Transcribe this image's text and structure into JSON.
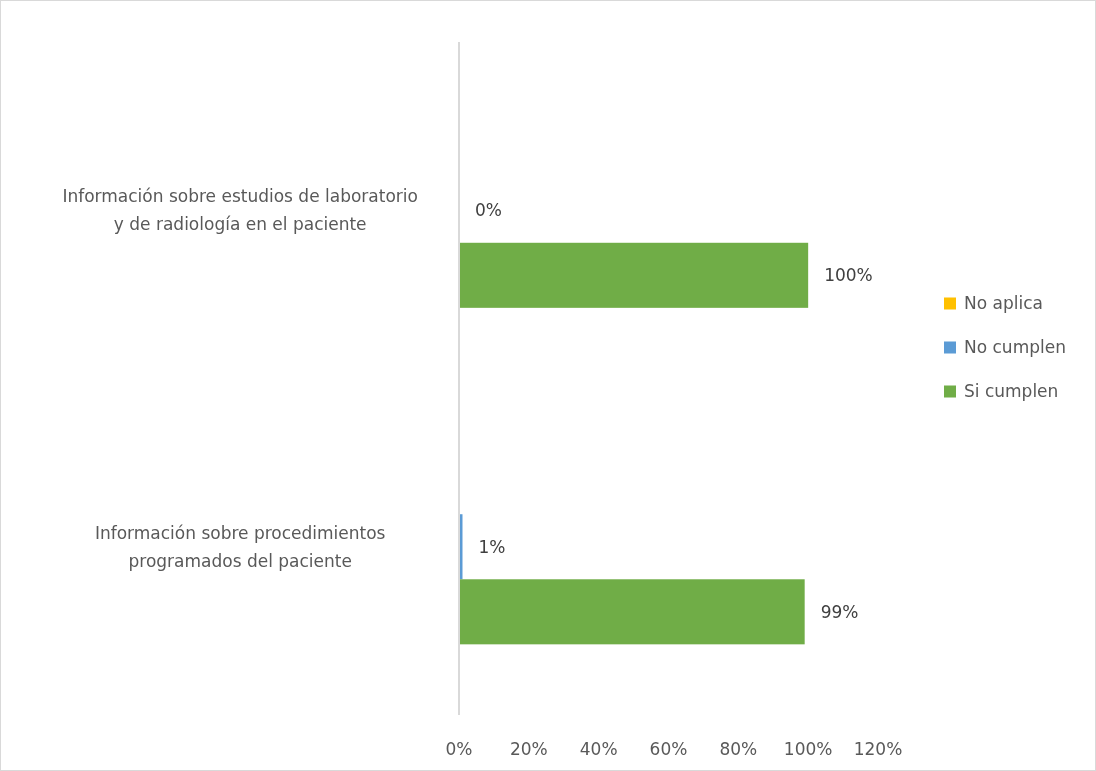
{
  "chart_data": {
    "type": "bar",
    "orientation": "horizontal",
    "categories": [
      "Información sobre estudios de laboratorio y de radiología en el paciente",
      "Información sobre procedimientos programados del paciente"
    ],
    "series": [
      {
        "name": "No aplica",
        "color": "#ffc000",
        "values": [
          null,
          null
        ]
      },
      {
        "name": "No cumplen",
        "color": "#5b9bd5",
        "values": [
          0,
          1
        ],
        "value_labels": [
          "0%",
          "1%"
        ]
      },
      {
        "name": "Si cumplen",
        "color": "#70ad47",
        "values": [
          100,
          99
        ],
        "value_labels": [
          "100%",
          "99%"
        ]
      }
    ],
    "xlim": [
      0,
      120
    ],
    "xticks": [
      {
        "value": 0,
        "label": "0%"
      },
      {
        "value": 20,
        "label": "20%"
      },
      {
        "value": 40,
        "label": "40%"
      },
      {
        "value": 60,
        "label": "60%"
      },
      {
        "value": 80,
        "label": "80%"
      },
      {
        "value": 100,
        "label": "100%"
      },
      {
        "value": 120,
        "label": "120%"
      }
    ],
    "grid": false,
    "legend": "right"
  }
}
